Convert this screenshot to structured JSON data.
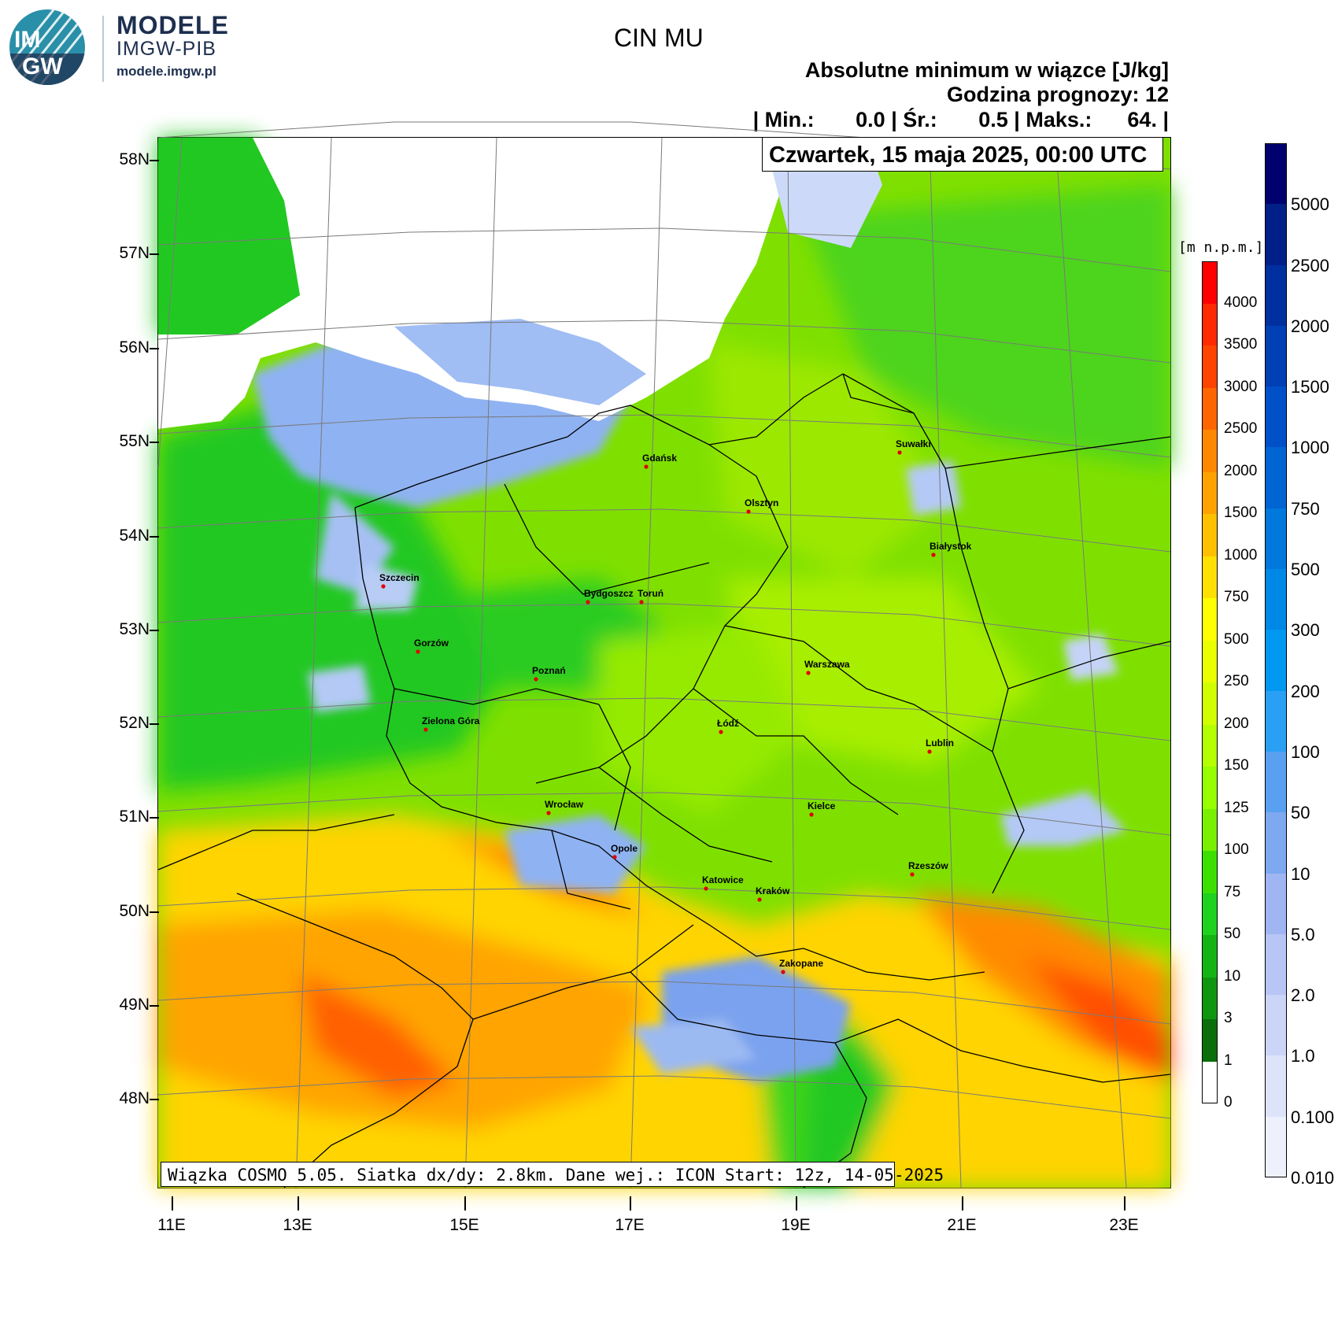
{
  "logo": {
    "badge_top": "IM",
    "badge_bottom": "GW",
    "line1": "MODELE",
    "line2": "IMGW-PIB",
    "line3": "modele.imgw.pl"
  },
  "header": {
    "title": "CIN MU",
    "subtitle": "Absolutne minimum w wiązce [J/kg]",
    "forecast_hour": "Godzina prognozy: 12",
    "stats": "| Min.:       0.0 | Śr.:       0.5 | Maks.:      64. |",
    "date": "Czwartek, 15 maja 2025, 00:00 UTC"
  },
  "footer": {
    "text": "Wiązka COSMO 5.05. Siatka dx/dy: 2.8km. Dane wej.: ICON Start: 12z, 14-05-2025"
  },
  "axes": {
    "lat_labels": [
      "58N",
      "57N",
      "56N",
      "55N",
      "54N",
      "53N",
      "52N",
      "51N",
      "50N",
      "49N",
      "48N"
    ],
    "lon_labels": [
      "11E",
      "13E",
      "15E",
      "17E",
      "19E",
      "21E",
      "23E"
    ]
  },
  "cities": [
    {
      "name": "Gdańsk"
    },
    {
      "name": "Suwałki"
    },
    {
      "name": "Olsztyn"
    },
    {
      "name": "Białystok"
    },
    {
      "name": "Szczecin"
    },
    {
      "name": "Bydgoszcz"
    },
    {
      "name": "Toruń"
    },
    {
      "name": "Gorzów"
    },
    {
      "name": "Poznań"
    },
    {
      "name": "Warszawa"
    },
    {
      "name": "Zielona Góra"
    },
    {
      "name": "Łódź"
    },
    {
      "name": "Lublin"
    },
    {
      "name": "Wrocław"
    },
    {
      "name": "Kielce"
    },
    {
      "name": "Opole"
    },
    {
      "name": "Rzeszów"
    },
    {
      "name": "Katowice"
    },
    {
      "name": "Kraków"
    },
    {
      "name": "Zakopane"
    }
  ],
  "terrain_colorbar": {
    "unit": "[m n.p.m.]",
    "labels": [
      "4000",
      "3500",
      "3000",
      "2500",
      "2000",
      "1500",
      "1000",
      "750",
      "500",
      "250",
      "200",
      "150",
      "125",
      "100",
      "75",
      "50",
      "10",
      "3",
      "1",
      "0"
    ],
    "colors": [
      "#ff0000",
      "#ff2a00",
      "#ff4400",
      "#ff6600",
      "#ff8800",
      "#ffa200",
      "#ffc000",
      "#ffe000",
      "#ffff00",
      "#eaff00",
      "#d2ff00",
      "#b4ff00",
      "#96ff00",
      "#78f000",
      "#3ce000",
      "#1ed21e",
      "#14b414",
      "#0f960f",
      "#0a6e0a",
      "#ffffff"
    ]
  },
  "cin_colorbar": {
    "labels": [
      "5000",
      "2500",
      "2000",
      "1500",
      "1000",
      "750",
      "500",
      "300",
      "200",
      "100",
      "50",
      "10",
      "5.0",
      "2.0",
      "1.0",
      "0.100",
      "0.010"
    ],
    "colors": [
      "#00006e",
      "#002088",
      "#0030a0",
      "#0040b4",
      "#0050c8",
      "#0064d2",
      "#0078dc",
      "#0088e6",
      "#0098f0",
      "#2aa0f5",
      "#5aa0f0",
      "#7ea8f0",
      "#9fb6f2",
      "#b7c6f4",
      "#cbd5f7",
      "#dde4fa",
      "#eef1fc"
    ]
  },
  "colors": {
    "sea": "#ffffff",
    "low_cin": "#6f9ff0",
    "lowland": "#22c822",
    "plain": "#8ee800",
    "upland": "#ffc000",
    "mountain": "#ff6000",
    "logo_blue": "#1d2f4f",
    "logo_teal": "#2a8fa8"
  }
}
